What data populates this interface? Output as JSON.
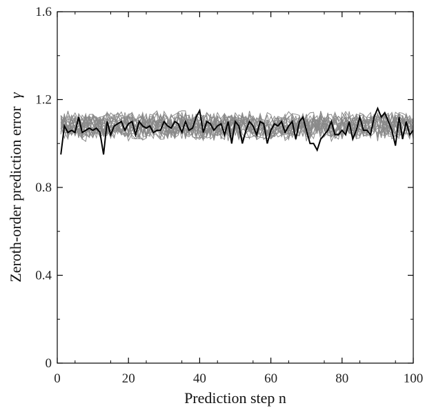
{
  "chart_data": {
    "type": "line",
    "xlabel": "Prediction step n",
    "ylabel": "Zeroth-order prediction error",
    "ylabel_symbol": "γ",
    "xlim": [
      0,
      100
    ],
    "ylim": [
      0,
      1.6
    ],
    "xticks": [
      0,
      20,
      40,
      60,
      80,
      100
    ],
    "yticks": [
      0,
      0.4,
      0.8,
      1.2,
      1.6
    ],
    "ytick_labels": [
      "0",
      "0.4",
      "0.8",
      "1.2",
      "1.6"
    ],
    "legend": "none",
    "grid": false,
    "colors": {
      "background_series": "#8a8a8a",
      "highlight_series": "#000000"
    },
    "background_series_count": 20,
    "background_band": {
      "mean": 1.08,
      "spread": 0.04
    },
    "highlight_series": {
      "x": [
        1,
        2,
        3,
        4,
        5,
        6,
        7,
        8,
        9,
        10,
        11,
        12,
        13,
        14,
        15,
        16,
        17,
        18,
        19,
        20,
        21,
        22,
        23,
        24,
        25,
        26,
        27,
        28,
        29,
        30,
        31,
        32,
        33,
        34,
        35,
        36,
        37,
        38,
        39,
        40,
        41,
        42,
        43,
        44,
        45,
        46,
        47,
        48,
        49,
        50,
        51,
        52,
        53,
        54,
        55,
        56,
        57,
        58,
        59,
        60,
        61,
        62,
        63,
        64,
        65,
        66,
        67,
        68,
        69,
        70,
        71,
        72,
        73,
        74,
        75,
        76,
        77,
        78,
        79,
        80,
        81,
        82,
        83,
        84,
        85,
        86,
        87,
        88,
        89,
        90,
        91,
        92,
        93,
        94,
        95,
        96,
        97,
        98,
        99,
        100
      ],
      "values": [
        0.95,
        1.08,
        1.05,
        1.06,
        1.05,
        1.12,
        1.05,
        1.06,
        1.07,
        1.06,
        1.07,
        1.05,
        0.95,
        1.1,
        1.04,
        1.08,
        1.09,
        1.1,
        1.06,
        1.09,
        1.1,
        1.04,
        1.1,
        1.08,
        1.07,
        1.08,
        1.05,
        1.06,
        1.06,
        1.1,
        1.08,
        1.07,
        1.1,
        1.09,
        1.05,
        1.1,
        1.06,
        1.07,
        1.12,
        1.15,
        1.05,
        1.1,
        1.09,
        1.06,
        1.08,
        1.09,
        1.04,
        1.1,
        1.0,
        1.1,
        1.08,
        1.0,
        1.06,
        1.1,
        1.08,
        1.04,
        1.1,
        1.09,
        1.0,
        1.06,
        1.09,
        1.08,
        1.1,
        1.05,
        1.08,
        1.1,
        1.02,
        1.1,
        1.12,
        1.06,
        1.0,
        1.0,
        0.97,
        1.02,
        1.04,
        1.06,
        1.1,
        1.04,
        1.04,
        1.06,
        1.04,
        1.1,
        1.02,
        1.06,
        1.12,
        1.06,
        1.06,
        1.04,
        1.12,
        1.16,
        1.12,
        1.14,
        1.1,
        1.06,
        0.99,
        1.12,
        1.02,
        1.1,
        1.04,
        1.06
      ]
    }
  }
}
